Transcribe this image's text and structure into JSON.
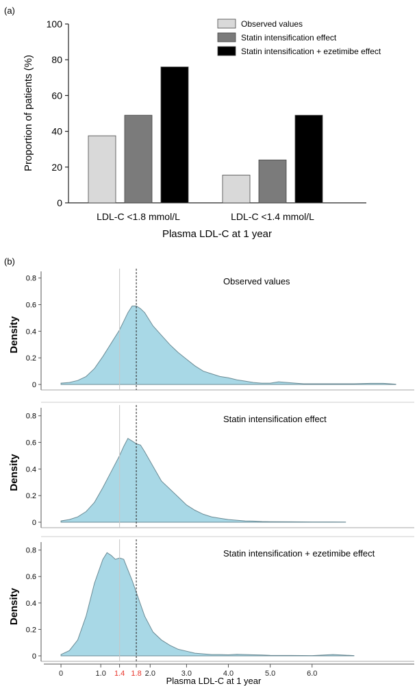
{
  "panel_a_label": "(a)",
  "panel_b_label": "(b)",
  "chart_data": [
    {
      "type": "bar",
      "title": "",
      "xlabel": "Plasma LDL-C at 1 year",
      "ylabel": "Proportion of patients (%)",
      "ylim": [
        0,
        100
      ],
      "yticks": [
        "0",
        "20",
        "40",
        "60",
        "80",
        "100"
      ],
      "categories": [
        "LDL-C <1.8 mmol/L",
        "LDL-C <1.4 mmol/L"
      ],
      "series": [
        {
          "name": "Observed values",
          "values": [
            37.5,
            15.5
          ],
          "color": "#d9d9d9"
        },
        {
          "name": "Statin intensification effect",
          "values": [
            49,
            24
          ],
          "color": "#7b7b7b"
        },
        {
          "name": "Statin intensification + ezetimibe effect",
          "values": [
            76,
            49
          ],
          "color": "#000000"
        }
      ],
      "legend": "top-right",
      "grid": false
    },
    {
      "type": "area",
      "title": "",
      "xlabel": "Plasma LDL-C at 1 year",
      "ylabel": "Density",
      "xlim": [
        -0.05,
        8.0
      ],
      "ylim": [
        0,
        0.85
      ],
      "yticks": [
        "0",
        "0.2",
        "0.4",
        "0.6",
        "0.8"
      ],
      "xticks": [
        "0",
        "1.0",
        "1.4",
        "1.8",
        "2.0",
        "3.0",
        "4.0",
        "5.0",
        "6.0"
      ],
      "highlight_ticks": [
        "1.4",
        "1.8"
      ],
      "highlight_color": "#e8342a",
      "fill_color": "#a8d8e6",
      "reference_lines": [
        {
          "x": 1.4,
          "style": "solid",
          "color": "#c8c8c8"
        },
        {
          "x": 1.8,
          "style": "dashed",
          "color": "#333333"
        }
      ],
      "panels": [
        {
          "name": "Observed values",
          "x": [
            0.0,
            0.2,
            0.4,
            0.6,
            0.8,
            1.0,
            1.2,
            1.4,
            1.6,
            1.7,
            1.8,
            1.9,
            2.0,
            2.2,
            2.4,
            2.6,
            2.8,
            3.0,
            3.2,
            3.4,
            3.6,
            3.8,
            4.0,
            4.2,
            4.4,
            4.6,
            4.8,
            5.0,
            5.2,
            5.4,
            5.6,
            5.8,
            6.0,
            6.5,
            7.0,
            7.4,
            7.7,
            8.0
          ],
          "y": [
            0.01,
            0.015,
            0.03,
            0.06,
            0.12,
            0.21,
            0.31,
            0.41,
            0.54,
            0.59,
            0.59,
            0.57,
            0.54,
            0.44,
            0.37,
            0.3,
            0.24,
            0.19,
            0.14,
            0.1,
            0.08,
            0.06,
            0.05,
            0.035,
            0.025,
            0.015,
            0.01,
            0.01,
            0.02,
            0.015,
            0.01,
            0.005,
            0.005,
            0.005,
            0.005,
            0.008,
            0.008,
            0.002
          ]
        },
        {
          "name": "Statin intensification effect",
          "x": [
            0.0,
            0.2,
            0.4,
            0.6,
            0.8,
            1.0,
            1.2,
            1.4,
            1.5,
            1.6,
            1.7,
            1.8,
            1.9,
            2.0,
            2.2,
            2.4,
            2.6,
            2.8,
            3.0,
            3.2,
            3.4,
            3.6,
            3.8,
            4.0,
            4.2,
            4.4,
            4.6,
            4.8,
            5.0,
            5.5,
            6.0,
            6.5,
            6.8
          ],
          "y": [
            0.01,
            0.02,
            0.04,
            0.08,
            0.15,
            0.26,
            0.38,
            0.5,
            0.57,
            0.63,
            0.61,
            0.59,
            0.58,
            0.53,
            0.42,
            0.31,
            0.25,
            0.19,
            0.13,
            0.09,
            0.06,
            0.04,
            0.03,
            0.02,
            0.015,
            0.01,
            0.008,
            0.005,
            0.004,
            0.003,
            0.002,
            0.002,
            0.001
          ]
        },
        {
          "name": "Statin intensification + ezetimibe effect",
          "x": [
            0.0,
            0.2,
            0.4,
            0.6,
            0.8,
            1.0,
            1.1,
            1.2,
            1.3,
            1.4,
            1.5,
            1.6,
            1.7,
            1.8,
            1.9,
            2.0,
            2.2,
            2.4,
            2.6,
            2.8,
            3.0,
            3.2,
            3.4,
            3.6,
            3.8,
            4.0,
            4.2,
            4.4,
            4.6,
            4.8,
            5.0,
            5.5,
            6.0,
            6.5,
            7.0
          ],
          "y": [
            0.01,
            0.04,
            0.12,
            0.3,
            0.55,
            0.73,
            0.78,
            0.76,
            0.73,
            0.74,
            0.73,
            0.65,
            0.57,
            0.48,
            0.39,
            0.3,
            0.18,
            0.12,
            0.08,
            0.05,
            0.035,
            0.02,
            0.015,
            0.01,
            0.01,
            0.008,
            0.012,
            0.01,
            0.008,
            0.006,
            0.004,
            0.003,
            0.002,
            0.01,
            0.002
          ]
        }
      ]
    }
  ]
}
